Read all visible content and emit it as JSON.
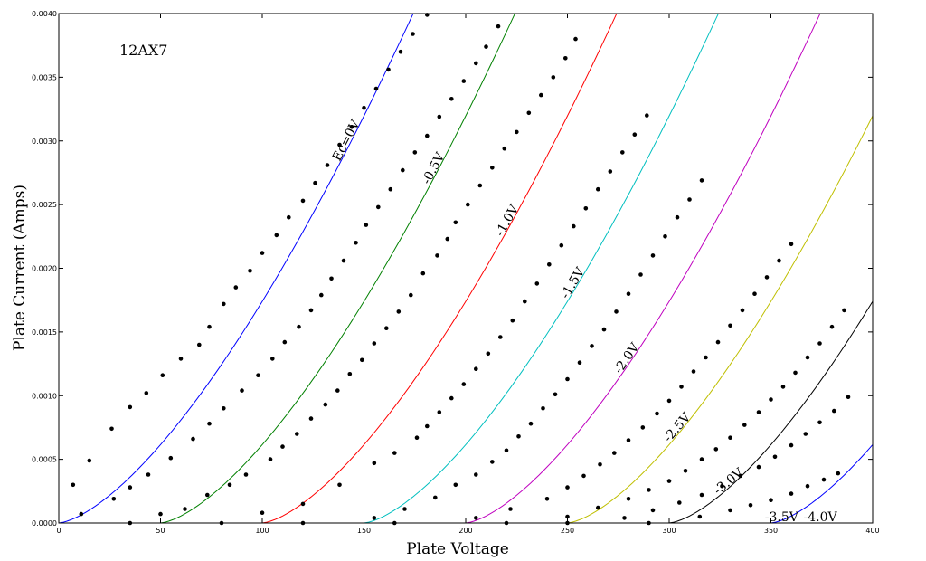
{
  "chart_data": {
    "type": "line",
    "title": "12AX7",
    "xlabel": "Plate  Voltage",
    "ylabel": "Plate  Current  (Amps)",
    "xlim": [
      0,
      400
    ],
    "ylim": [
      0,
      0.004
    ],
    "x_ticks": [
      "0",
      "50",
      "100",
      "150",
      "200",
      "250",
      "300",
      "350",
      "400"
    ],
    "y_ticks": [
      "0.0000",
      "0.0005",
      "0.0010",
      "0.0015",
      "0.0020",
      "0.0025",
      "0.0030",
      "0.0035",
      "0.0040"
    ],
    "grid": false,
    "model": {
      "k": 1.74e-06,
      "mu": 100
    },
    "series": [
      {
        "name": "Ec=0V",
        "grid_voltage": 0.0,
        "color": "#0000ff",
        "measured": [
          [
            7,
            0.0003
          ],
          [
            15,
            0.00049
          ],
          [
            26,
            0.00074
          ],
          [
            35,
            0.00091
          ],
          [
            43,
            0.00102
          ],
          [
            51,
            0.00116
          ],
          [
            60,
            0.00129
          ],
          [
            69,
            0.0014
          ],
          [
            74,
            0.00154
          ],
          [
            81,
            0.00172
          ],
          [
            87,
            0.00185
          ],
          [
            94,
            0.00198
          ],
          [
            100,
            0.00212
          ],
          [
            107,
            0.00226
          ],
          [
            113,
            0.0024
          ],
          [
            120,
            0.00253
          ],
          [
            126,
            0.00267
          ],
          [
            132,
            0.00281
          ],
          [
            138,
            0.00297
          ],
          [
            144,
            0.00311
          ],
          [
            150,
            0.00326
          ],
          [
            156,
            0.00341
          ],
          [
            162,
            0.00356
          ],
          [
            168,
            0.0037
          ],
          [
            174,
            0.00384
          ],
          [
            181,
            0.00399
          ]
        ]
      },
      {
        "name": "-0.5V",
        "grid_voltage": -0.5,
        "color": "#008000",
        "measured": [
          [
            11,
            7e-05
          ],
          [
            27,
            0.00019
          ],
          [
            35,
            0.00028
          ],
          [
            44,
            0.00038
          ],
          [
            55,
            0.00051
          ],
          [
            66,
            0.00066
          ],
          [
            74,
            0.00078
          ],
          [
            81,
            0.0009
          ],
          [
            90,
            0.00104
          ],
          [
            98,
            0.00116
          ],
          [
            105,
            0.00129
          ],
          [
            111,
            0.00142
          ],
          [
            118,
            0.00154
          ],
          [
            124,
            0.00167
          ],
          [
            129,
            0.00179
          ],
          [
            134,
            0.00192
          ],
          [
            140,
            0.00206
          ],
          [
            146,
            0.0022
          ],
          [
            151,
            0.00234
          ],
          [
            157,
            0.00248
          ],
          [
            163,
            0.00262
          ],
          [
            169,
            0.00277
          ],
          [
            175,
            0.00291
          ],
          [
            181,
            0.00304
          ],
          [
            187,
            0.00319
          ],
          [
            193,
            0.00333
          ],
          [
            199,
            0.00347
          ],
          [
            205,
            0.00361
          ],
          [
            210,
            0.00374
          ],
          [
            216,
            0.0039
          ]
        ]
      },
      {
        "name": "-1.0V",
        "grid_voltage": -1.0,
        "color": "#ff0000",
        "measured": [
          [
            35,
            0.0
          ],
          [
            50,
            7e-05
          ],
          [
            62,
            0.00011
          ],
          [
            73,
            0.00022
          ],
          [
            84,
            0.0003
          ],
          [
            92,
            0.00038
          ],
          [
            104,
            0.0005
          ],
          [
            110,
            0.0006
          ],
          [
            117,
            0.0007
          ],
          [
            124,
            0.00082
          ],
          [
            131,
            0.00093
          ],
          [
            137,
            0.00104
          ],
          [
            143,
            0.00117
          ],
          [
            149,
            0.00128
          ],
          [
            155,
            0.00141
          ],
          [
            161,
            0.00153
          ],
          [
            167,
            0.00166
          ],
          [
            173,
            0.00179
          ],
          [
            179,
            0.00196
          ],
          [
            186,
            0.0021
          ],
          [
            191,
            0.00223
          ],
          [
            195,
            0.00236
          ],
          [
            201,
            0.0025
          ],
          [
            207,
            0.00265
          ],
          [
            213,
            0.00279
          ],
          [
            219,
            0.00294
          ],
          [
            225,
            0.00307
          ],
          [
            231,
            0.00322
          ],
          [
            237,
            0.00336
          ],
          [
            243,
            0.0035
          ],
          [
            249,
            0.00365
          ],
          [
            254,
            0.0038
          ]
        ]
      },
      {
        "name": "-1.5V",
        "grid_voltage": -1.5,
        "color": "#00bfbf",
        "measured": [
          [
            80,
            0.0
          ],
          [
            100,
            8e-05
          ],
          [
            120,
            0.00015
          ],
          [
            138,
            0.0003
          ],
          [
            155,
            0.00047
          ],
          [
            165,
            0.00055
          ],
          [
            176,
            0.00067
          ],
          [
            181,
            0.00076
          ],
          [
            187,
            0.00087
          ],
          [
            193,
            0.00098
          ],
          [
            199,
            0.00109
          ],
          [
            205,
            0.00121
          ],
          [
            211,
            0.00133
          ],
          [
            217,
            0.00146
          ],
          [
            223,
            0.00159
          ],
          [
            229,
            0.00174
          ],
          [
            235,
            0.00188
          ],
          [
            241,
            0.00203
          ],
          [
            247,
            0.00218
          ],
          [
            253,
            0.00233
          ],
          [
            259,
            0.00247
          ],
          [
            265,
            0.00262
          ],
          [
            271,
            0.00276
          ],
          [
            277,
            0.00291
          ],
          [
            283,
            0.00305
          ],
          [
            289,
            0.0032
          ]
        ]
      },
      {
        "name": "-2.0V",
        "grid_voltage": -2.0,
        "color": "#bf00bf",
        "measured": [
          [
            120,
            0.0
          ],
          [
            155,
            4e-05
          ],
          [
            170,
            0.00011
          ],
          [
            185,
            0.0002
          ],
          [
            195,
            0.0003
          ],
          [
            205,
            0.00038
          ],
          [
            213,
            0.00048
          ],
          [
            220,
            0.00057
          ],
          [
            226,
            0.00068
          ],
          [
            232,
            0.00078
          ],
          [
            238,
            0.0009
          ],
          [
            244,
            0.00101
          ],
          [
            250,
            0.00113
          ],
          [
            256,
            0.00126
          ],
          [
            262,
            0.00139
          ],
          [
            268,
            0.00152
          ],
          [
            274,
            0.00166
          ],
          [
            280,
            0.0018
          ],
          [
            286,
            0.00195
          ],
          [
            292,
            0.0021
          ],
          [
            298,
            0.00225
          ],
          [
            304,
            0.0024
          ],
          [
            310,
            0.00254
          ],
          [
            316,
            0.00269
          ]
        ]
      },
      {
        "name": "-2.5V",
        "grid_voltage": -2.5,
        "color": "#bfbf00",
        "measured": [
          [
            165,
            0.0
          ],
          [
            205,
            4e-05
          ],
          [
            222,
            0.00011
          ],
          [
            240,
            0.00019
          ],
          [
            250,
            0.00028
          ],
          [
            258,
            0.00037
          ],
          [
            266,
            0.00046
          ],
          [
            273,
            0.00055
          ],
          [
            280,
            0.00065
          ],
          [
            287,
            0.00075
          ],
          [
            294,
            0.00086
          ],
          [
            300,
            0.00096
          ],
          [
            306,
            0.00107
          ],
          [
            312,
            0.00119
          ],
          [
            318,
            0.0013
          ],
          [
            324,
            0.00142
          ],
          [
            330,
            0.00155
          ],
          [
            336,
            0.00167
          ],
          [
            342,
            0.0018
          ],
          [
            348,
            0.00193
          ],
          [
            354,
            0.00206
          ],
          [
            360,
            0.00219
          ]
        ]
      },
      {
        "name": "-3.0V",
        "grid_voltage": -3.0,
        "color": "#000000",
        "measured": [
          [
            220,
            0.0
          ],
          [
            250,
            5e-05
          ],
          [
            265,
            0.00012
          ],
          [
            280,
            0.00019
          ],
          [
            290,
            0.00026
          ],
          [
            300,
            0.00033
          ],
          [
            308,
            0.00041
          ],
          [
            316,
            0.0005
          ],
          [
            323,
            0.00058
          ],
          [
            330,
            0.00067
          ],
          [
            337,
            0.00077
          ],
          [
            344,
            0.00087
          ],
          [
            350,
            0.00097
          ],
          [
            356,
            0.00107
          ],
          [
            362,
            0.00118
          ],
          [
            368,
            0.0013
          ],
          [
            374,
            0.00141
          ],
          [
            380,
            0.00154
          ],
          [
            386,
            0.00167
          ]
        ]
      },
      {
        "name": "-3.5V",
        "grid_voltage": -3.5,
        "color": "#0000ff",
        "measured": [
          [
            250,
            0.0
          ],
          [
            278,
            4e-05
          ],
          [
            292,
            0.0001
          ],
          [
            305,
            0.00016
          ],
          [
            316,
            0.00022
          ],
          [
            326,
            0.00029
          ],
          [
            335,
            0.00037
          ],
          [
            344,
            0.00044
          ],
          [
            352,
            0.00052
          ],
          [
            360,
            0.00061
          ],
          [
            367,
            0.0007
          ],
          [
            374,
            0.00079
          ],
          [
            381,
            0.00088
          ],
          [
            388,
            0.00099
          ]
        ]
      },
      {
        "name": "-4.0V",
        "grid_voltage": -4.0,
        "color": "#008000",
        "measured": [
          [
            290,
            0.0
          ],
          [
            315,
            5e-05
          ],
          [
            330,
            0.0001
          ],
          [
            340,
            0.00014
          ],
          [
            350,
            0.00018
          ],
          [
            360,
            0.00023
          ],
          [
            368,
            0.00029
          ],
          [
            376,
            0.00034
          ],
          [
            383,
            0.00039
          ]
        ]
      }
    ]
  }
}
